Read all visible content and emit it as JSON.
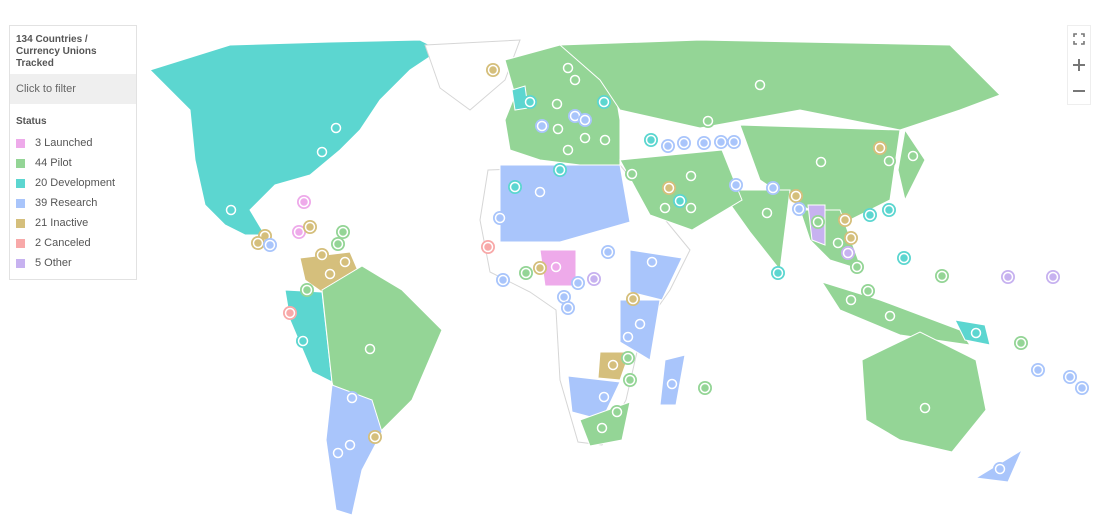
{
  "legend": {
    "title": "134 Countries / Currency Unions Tracked",
    "filter_label": "Click to filter",
    "status_heading": "Status",
    "items": [
      {
        "label": "3 Launched",
        "key": "launched",
        "color": "#eeaaea"
      },
      {
        "label": "44 Pilot",
        "key": "pilot",
        "color": "#94d596"
      },
      {
        "label": "20 Development",
        "key": "development",
        "color": "#5cd6d0"
      },
      {
        "label": "39 Research",
        "key": "research",
        "color": "#a9c5fb"
      },
      {
        "label": "21 Inactive",
        "key": "inactive",
        "color": "#d5bf7c"
      },
      {
        "label": "2 Canceled",
        "key": "canceled",
        "color": "#f8a9a9"
      },
      {
        "label": "5 Other",
        "key": "other",
        "color": "#c7b2f0"
      }
    ]
  },
  "controls": {
    "fullscreen_icon": "fullscreen-icon",
    "zoom_in_icon": "plus-icon",
    "zoom_out_icon": "minus-icon"
  }
}
